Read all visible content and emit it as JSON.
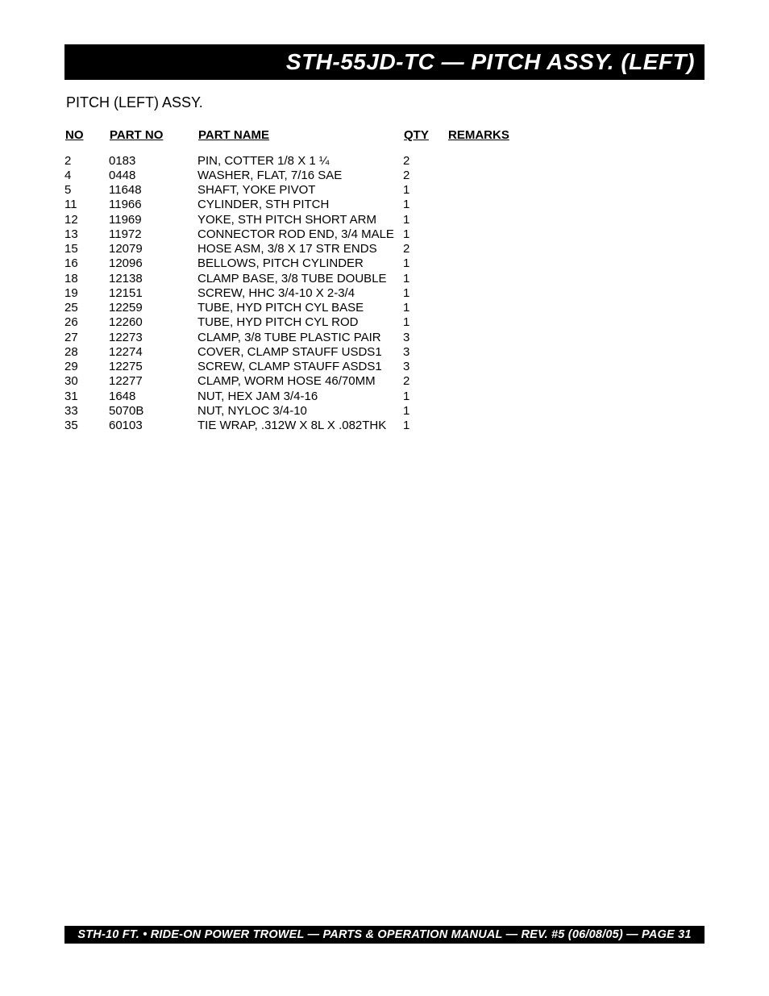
{
  "title": "STH-55JD-TC — PITCH ASSY. (LEFT)",
  "subtitle": "PITCH (LEFT) ASSY.",
  "headers": {
    "no": "NO",
    "part_no": "PART NO",
    "part_name": "PART NAME",
    "qty": "QTY",
    "remarks": "REMARKS"
  },
  "rows": [
    {
      "no": "2",
      "part_no": "0183",
      "part_name": "PIN, COTTER 1/8 X 1 ¼",
      "qty": "2",
      "remarks": ""
    },
    {
      "no": "4",
      "part_no": "0448",
      "part_name": "WASHER, FLAT, 7/16 SAE",
      "qty": "2",
      "remarks": ""
    },
    {
      "no": "5",
      "part_no": "11648",
      "part_name": "SHAFT, YOKE PIVOT",
      "qty": "1",
      "remarks": ""
    },
    {
      "no": "11",
      "part_no": "11966",
      "part_name": "CYLINDER, STH PITCH",
      "qty": "1",
      "remarks": ""
    },
    {
      "no": "12",
      "part_no": "11969",
      "part_name": "YOKE, STH PITCH SHORT ARM",
      "qty": "1",
      "remarks": ""
    },
    {
      "no": "13",
      "part_no": "11972",
      "part_name": "CONNECTOR ROD END, 3/4 MALE",
      "qty": "1",
      "remarks": ""
    },
    {
      "no": "15",
      "part_no": "12079",
      "part_name": "HOSE ASM, 3/8 X 17 STR ENDS",
      "qty": "2",
      "remarks": ""
    },
    {
      "no": "16",
      "part_no": "12096",
      "part_name": "BELLOWS, PITCH CYLINDER",
      "qty": "1",
      "remarks": ""
    },
    {
      "no": "18",
      "part_no": "12138",
      "part_name": "CLAMP BASE, 3/8 TUBE DOUBLE",
      "qty": "1",
      "remarks": ""
    },
    {
      "no": "19",
      "part_no": "12151",
      "part_name": "SCREW, HHC 3/4-10 X 2-3/4",
      "qty": "1",
      "remarks": ""
    },
    {
      "no": "25",
      "part_no": "12259",
      "part_name": "TUBE, HYD PITCH CYL BASE",
      "qty": "1",
      "remarks": ""
    },
    {
      "no": "26",
      "part_no": "12260",
      "part_name": "TUBE, HYD PITCH CYL ROD",
      "qty": "1",
      "remarks": ""
    },
    {
      "no": "27",
      "part_no": "12273",
      "part_name": "CLAMP, 3/8 TUBE PLASTIC PAIR",
      "qty": "3",
      "remarks": ""
    },
    {
      "no": "28",
      "part_no": "12274",
      "part_name": "COVER, CLAMP STAUFF USDS1",
      "qty": "3",
      "remarks": ""
    },
    {
      "no": "29",
      "part_no": "12275",
      "part_name": "SCREW, CLAMP STAUFF ASDS1",
      "qty": "3",
      "remarks": ""
    },
    {
      "no": "30",
      "part_no": "12277",
      "part_name": "CLAMP, WORM HOSE 46/70MM",
      "qty": "2",
      "remarks": ""
    },
    {
      "no": "31",
      "part_no": "1648",
      "part_name": "NUT, HEX JAM 3/4-16",
      "qty": "1",
      "remarks": ""
    },
    {
      "no": "33",
      "part_no": "5070B",
      "part_name": "NUT, NYLOC 3/4-10",
      "qty": "1",
      "remarks": ""
    },
    {
      "no": "35",
      "part_no": "60103",
      "part_name": "TIE WRAP, .312W X 8L X .082THK",
      "qty": "1",
      "remarks": ""
    }
  ],
  "footer": "STH-10 FT. • RIDE-ON POWER TROWEL — PARTS & OPERATION MANUAL — REV.  #5 (06/08/05) — PAGE 31"
}
